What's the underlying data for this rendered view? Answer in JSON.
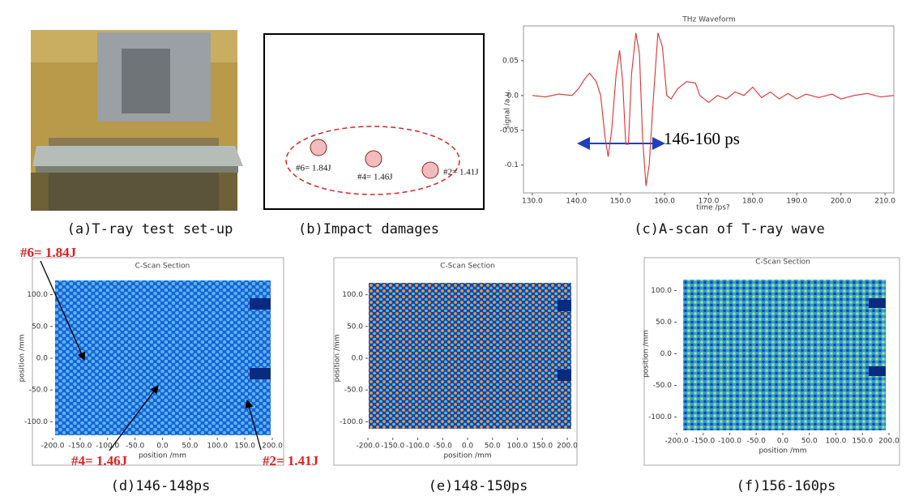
{
  "panel_a": {
    "caption": "(a)T-ray test set-up"
  },
  "panel_b": {
    "caption": "(b)Impact damages",
    "labels": [
      "#6= 1.84J",
      "#4= 1.46J",
      "#2= 1.41J"
    ]
  },
  "panel_c": {
    "title": "THz Waveform",
    "xlabel": "time /ps?",
    "ylabel": "signal /a.u.",
    "annotation": "146-160 ps",
    "caption": "(c)A-scan of T-ray wave",
    "xlim": [
      128,
      212
    ],
    "ylim": [
      -0.14,
      0.1
    ],
    "xticks": [
      {
        "value": 130,
        "label": "130.0"
      },
      {
        "value": 140,
        "label": "140.0"
      },
      {
        "value": 150,
        "label": "150.0"
      },
      {
        "value": 160,
        "label": "160.0"
      },
      {
        "value": 170,
        "label": "170.0"
      },
      {
        "value": 180,
        "label": "180.0"
      },
      {
        "value": 190,
        "label": "190.0"
      },
      {
        "value": 200,
        "label": "200.0"
      },
      {
        "value": 210,
        "label": "210.0"
      }
    ],
    "yticks": [
      0.05,
      {
        "value": 0,
        "label": "0.0"
      },
      -0.05,
      -0.1
    ],
    "color": "#e03030",
    "x": [
      130,
      133,
      136,
      139,
      140.5,
      142,
      143,
      144.5,
      145.5,
      146.5,
      147.2,
      148,
      149,
      149.8,
      150.5,
      151.2,
      151.8,
      152.5,
      153.5,
      154.3,
      155,
      155.8,
      156.5,
      157.5,
      158.5,
      159.5,
      160.5,
      161.5,
      163,
      165,
      167,
      168,
      170,
      172,
      174,
      176,
      178,
      180,
      182,
      184,
      186,
      188,
      190,
      192,
      195,
      198,
      200,
      203,
      206,
      209,
      212
    ],
    "values": [
      0,
      -0.002,
      0.002,
      0,
      0.01,
      0.025,
      0.032,
      0.02,
      0,
      -0.06,
      -0.088,
      -0.05,
      0.03,
      0.065,
      0.02,
      -0.07,
      -0.07,
      0.03,
      0.09,
      0.06,
      -0.06,
      -0.13,
      -0.1,
      0,
      0.09,
      0.07,
      0,
      -0.005,
      0.01,
      0.02,
      0.018,
      0,
      -0.01,
      0,
      -0.005,
      0.005,
      0,
      0.012,
      -0.003,
      0.005,
      -0.005,
      0.003,
      -0.005,
      0.002,
      -0.003,
      0.002,
      -0.005,
      0,
      0.003,
      -0.002,
      0
    ]
  },
  "panel_d": {
    "title": "C-Scan Section",
    "xlabel": "position /mm",
    "ylabel": "position /mm",
    "caption": "(d)146-148ps",
    "annotations": [
      "#6= 1.84J",
      "#4= 1.46J",
      "#2= 1.41J"
    ],
    "xlim": [
      -200,
      200
    ],
    "ylim": [
      -125,
      125
    ],
    "xticks": [
      {
        "value": -200,
        "label": "-200.0"
      },
      {
        "value": -150,
        "label": "-150.0"
      },
      {
        "value": -100,
        "label": "-100.0"
      },
      {
        "value": -50,
        "label": "-50.0"
      },
      {
        "value": 0,
        "label": "0.0"
      },
      {
        "value": 50,
        "label": "50.0"
      },
      {
        "value": 100,
        "label": "100.0"
      },
      {
        "value": 150,
        "label": "150.0"
      },
      {
        "value": 200,
        "label": "200.0"
      }
    ],
    "yticks": [
      {
        "value": 100,
        "label": "100.0"
      },
      {
        "value": 50,
        "label": "50.0"
      },
      {
        "value": 0,
        "label": "0.0"
      },
      {
        "value": -50,
        "label": "-50.0"
      },
      {
        "value": -100,
        "label": "-100.0"
      }
    ]
  },
  "panel_e": {
    "title": "C-Scan Section",
    "xlabel": "position /mm",
    "ylabel": "position /mm",
    "caption": "(e)148-150ps",
    "xlim": [
      -200,
      200
    ],
    "ylim": [
      -125,
      125
    ],
    "xticks": [
      {
        "value": -200,
        "label": "-200.0"
      },
      {
        "value": -150,
        "label": "-150.0"
      },
      {
        "value": -100,
        "label": "-100.0"
      },
      {
        "value": -50,
        "label": "-50.0"
      },
      {
        "value": 0,
        "label": "0.0"
      },
      {
        "value": 50,
        "label": "50.0"
      },
      {
        "value": 100,
        "label": "100.0"
      },
      {
        "value": 150,
        "label": "150.0"
      },
      {
        "value": 200,
        "label": "200.0"
      }
    ],
    "yticks": [
      {
        "value": 100,
        "label": "100.0"
      },
      {
        "value": 50,
        "label": "50.0"
      },
      {
        "value": 0,
        "label": "0.0"
      },
      {
        "value": -50,
        "label": "-50.0"
      },
      {
        "value": -100,
        "label": "-100.0"
      }
    ]
  },
  "panel_f": {
    "title": "C-Scan Section",
    "xlabel": "position /mm",
    "ylabel": "position /mm",
    "caption": "(f)156-160ps",
    "xlim": [
      -200,
      200
    ],
    "ylim": [
      -125,
      125
    ],
    "xticks": [
      {
        "value": -200,
        "label": "-200.0"
      },
      {
        "value": -150,
        "label": "-150.0"
      },
      {
        "value": -100,
        "label": "-100.0"
      },
      {
        "value": -50,
        "label": "-50.0"
      },
      {
        "value": 0,
        "label": "0.0"
      },
      {
        "value": 50,
        "label": "50.0"
      },
      {
        "value": 100,
        "label": "100.0"
      },
      {
        "value": 150,
        "label": "150.0"
      },
      {
        "value": 200,
        "label": "200.0"
      }
    ],
    "yticks": [
      {
        "value": 100,
        "label": "100.0"
      },
      {
        "value": 50,
        "label": "50.0"
      },
      {
        "value": 0,
        "label": "0.0"
      },
      {
        "value": -50,
        "label": "-50.0"
      },
      {
        "value": -100,
        "label": "-100.0"
      }
    ]
  }
}
